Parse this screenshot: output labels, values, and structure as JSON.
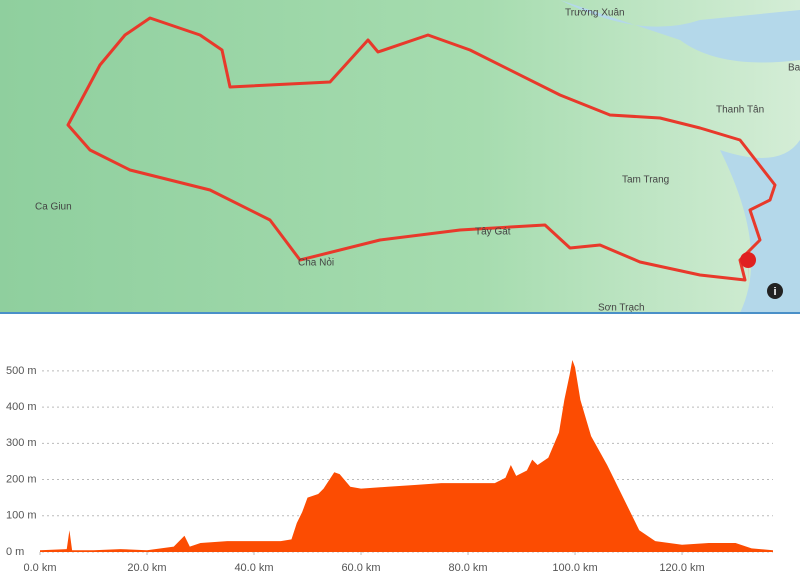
{
  "map": {
    "labels": [
      "Trường Xuân",
      "Ba",
      "Thanh Tân",
      "Tam Trang",
      "Ca Giun",
      "Cha Nỏi",
      "Tây Gát",
      "Sơn Trạch"
    ]
  },
  "chart_data": {
    "type": "area",
    "color": "#fc4c02",
    "x": [
      0,
      5,
      5.5,
      6,
      10,
      15,
      20,
      25,
      27,
      28,
      30,
      35,
      40,
      45,
      47,
      48,
      49,
      50,
      52,
      53,
      55,
      56,
      58,
      60,
      65,
      70,
      75,
      80,
      85,
      87,
      88,
      89,
      91,
      92,
      93,
      95,
      97,
      98,
      99,
      99.5,
      100,
      101,
      103,
      106,
      110,
      112,
      115,
      120,
      125,
      130,
      133,
      137
    ],
    "values": [
      5,
      8,
      60,
      5,
      5,
      8,
      5,
      15,
      45,
      15,
      25,
      30,
      30,
      30,
      35,
      80,
      110,
      150,
      160,
      175,
      220,
      215,
      180,
      175,
      180,
      185,
      190,
      190,
      190,
      205,
      240,
      210,
      225,
      255,
      240,
      260,
      330,
      420,
      490,
      530,
      510,
      420,
      320,
      240,
      120,
      60,
      30,
      20,
      25,
      25,
      10,
      5
    ],
    "xlim": [
      0,
      137
    ],
    "ylim": [
      0,
      530
    ],
    "xticks": [
      {
        "value": 0,
        "label": "0.0 km"
      },
      {
        "value": 20,
        "label": "20.0 km"
      },
      {
        "value": 40,
        "label": "40.0 km"
      },
      {
        "value": 60,
        "label": "60.0 km"
      },
      {
        "value": 80,
        "label": "80.0 km"
      },
      {
        "value": 100,
        "label": "100.0 km"
      },
      {
        "value": 120,
        "label": "120.0 km"
      }
    ],
    "yticks": [
      {
        "value": 0,
        "label": "0 m"
      },
      {
        "value": 100,
        "label": "100 m"
      },
      {
        "value": 200,
        "label": "200 m"
      },
      {
        "value": 300,
        "label": "300 m"
      },
      {
        "value": 400,
        "label": "400 m"
      },
      {
        "value": 500,
        "label": "500 m"
      }
    ],
    "grid": true
  }
}
